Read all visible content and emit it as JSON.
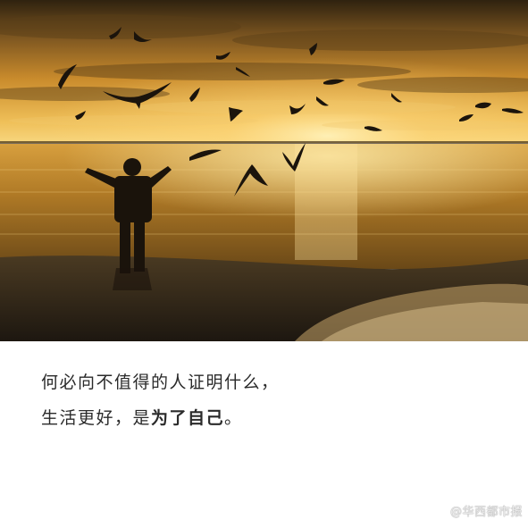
{
  "caption": {
    "line1": "何必向不值得的人证明什么，",
    "line2_prefix": "生活更好，是",
    "line2_bold": "为了自己",
    "line2_suffix": "。"
  },
  "watermark": {
    "text": "@华西都市报"
  },
  "photo": {
    "scene": "sunset-beach-child-birds",
    "colors": {
      "sky_top": "#3b2a12",
      "sky_mid": "#c88a2a",
      "sky_glow": "#f6d27a",
      "sea": "#a9721f",
      "sand": "#2a2217"
    }
  }
}
